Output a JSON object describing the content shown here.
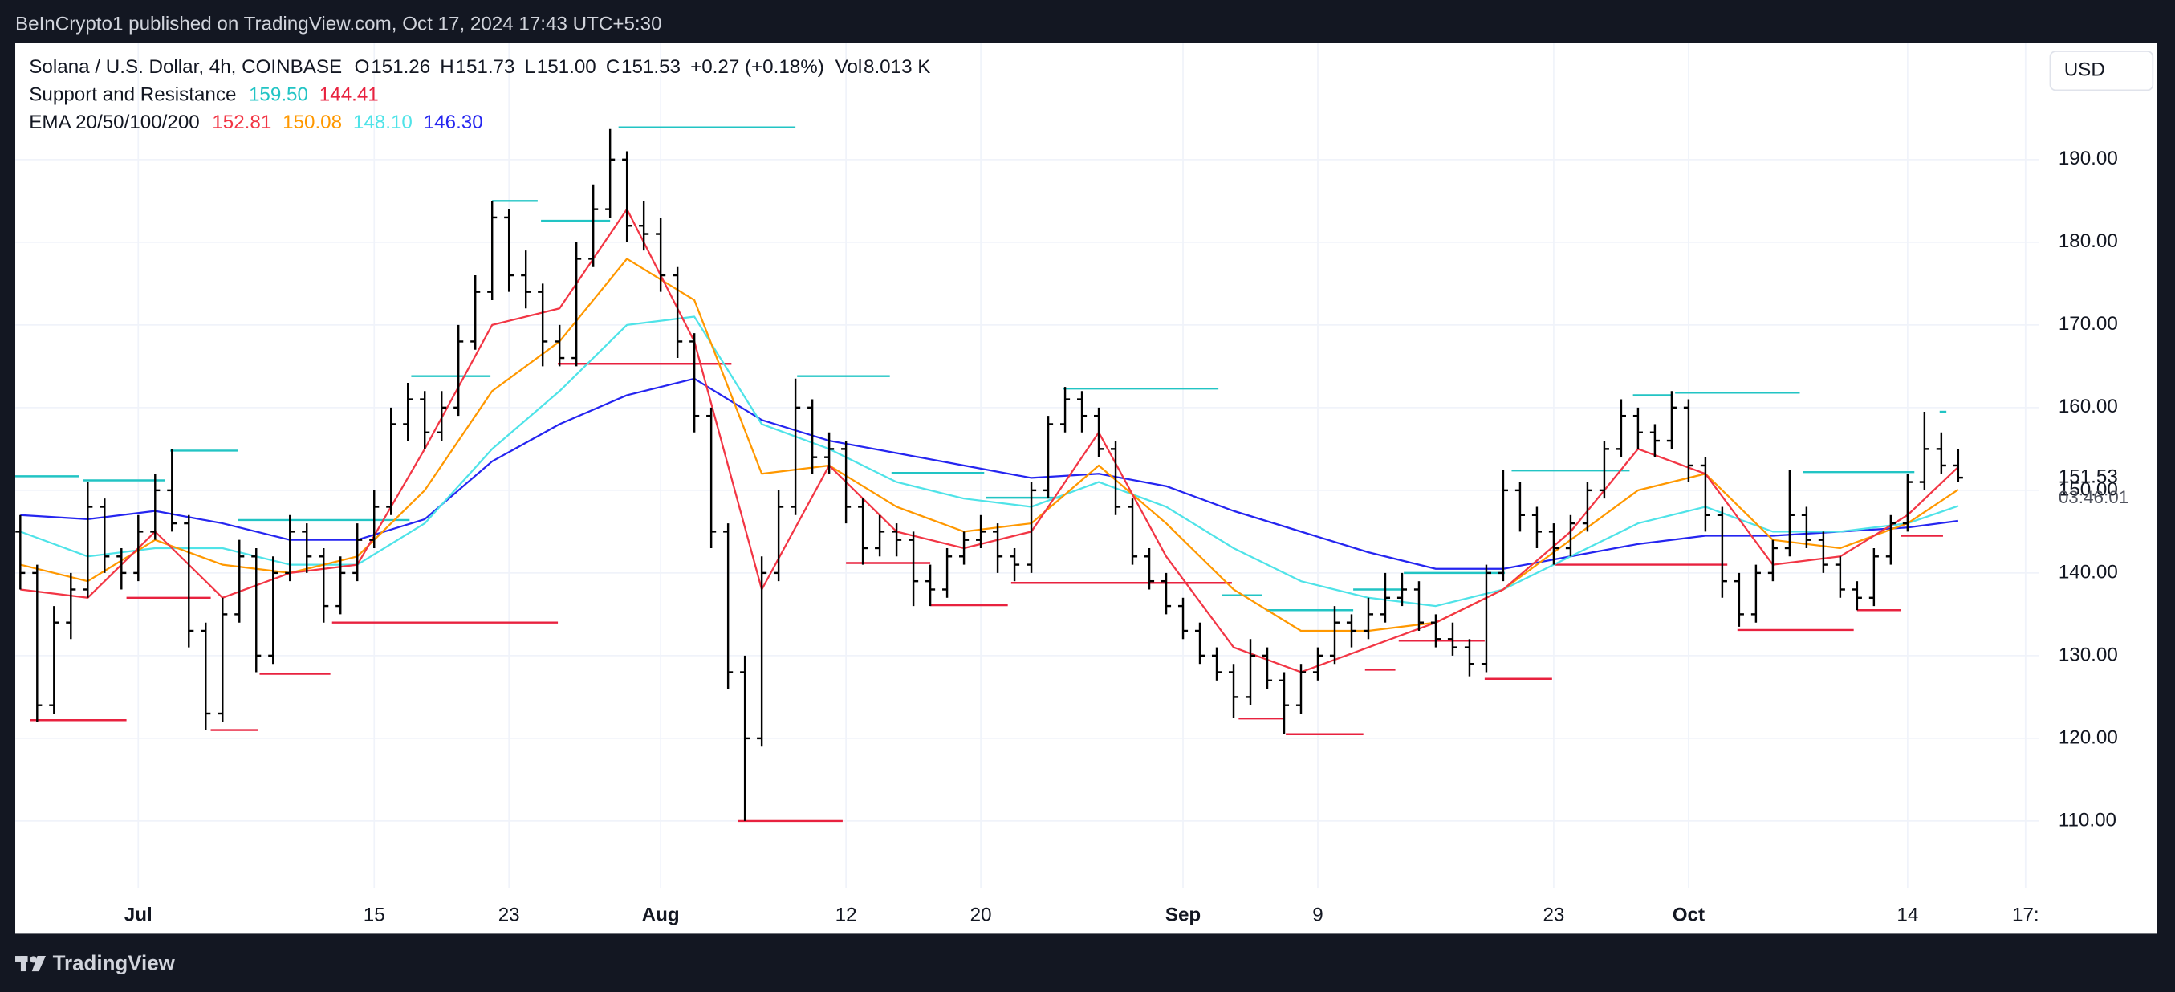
{
  "header": {
    "text": "BeInCrypto1 published on TradingView.com, Oct 17, 2024 17:43 UTC+5:30"
  },
  "legend": {
    "symbol": "Solana / U.S. Dollar, 4h, COINBASE",
    "ohlc": [
      {
        "label": "O",
        "value": "151.26"
      },
      {
        "label": "H",
        "value": "151.73"
      },
      {
        "label": "L",
        "value": "151.00"
      },
      {
        "label": "C",
        "value": "151.53"
      }
    ],
    "change": "+0.27 (+0.18%)",
    "volume": {
      "label": "Vol",
      "value": "8.013 K"
    },
    "indicators": [
      {
        "name": "Support and Resistance",
        "values": [
          "159.50",
          "144.41"
        ],
        "colors": [
          "#22c4c4",
          "#e8223f"
        ]
      },
      {
        "name": "EMA 20/50/100/200",
        "values": [
          "152.81",
          "150.08",
          "148.10",
          "146.30"
        ],
        "colors": [
          "#f23645",
          "#ff9800",
          "#4fe3e8",
          "#2525f0"
        ]
      }
    ]
  },
  "currency": "USD",
  "countdown": "03:46:01",
  "footer": {
    "brand": "TradingView"
  },
  "chart_data": {
    "type": "candlestick",
    "color": "#000000",
    "grid": true,
    "xlim": [
      -7.3,
      112.8
    ],
    "ylim": [
      101.9,
      204.1
    ],
    "xticks": [
      {
        "value": 0,
        "label": "Jul"
      },
      {
        "value": 14,
        "label": "15"
      },
      {
        "value": 22,
        "label": "23"
      },
      {
        "value": 31,
        "label": "Aug"
      },
      {
        "value": 42,
        "label": "12"
      },
      {
        "value": 50,
        "label": "20"
      },
      {
        "value": 62,
        "label": "Sep"
      },
      {
        "value": 70,
        "label": "9"
      },
      {
        "value": 84,
        "label": "23"
      },
      {
        "value": 92,
        "label": "Oct"
      },
      {
        "value": 105,
        "label": "14"
      },
      {
        "value": 112,
        "label": "17:"
      }
    ],
    "yticks": [
      {
        "value": 110,
        "label": "110.00"
      },
      {
        "value": 120,
        "label": "120.00"
      },
      {
        "value": 130,
        "label": "130.00"
      },
      {
        "value": 140,
        "label": "140.00"
      },
      {
        "value": 150,
        "label": "150.00"
      },
      {
        "value": 160,
        "label": "160.00"
      },
      {
        "value": 170,
        "label": "170.00"
      },
      {
        "value": 180,
        "label": "180.00"
      },
      {
        "value": 190,
        "label": "190.00"
      }
    ],
    "x": [
      -7,
      -6,
      -5,
      -4,
      -3,
      -2,
      -1,
      0,
      1,
      2,
      3,
      4,
      5,
      6,
      7,
      8,
      9,
      10,
      11,
      12,
      13,
      14,
      15,
      16,
      17,
      18,
      19,
      20,
      21,
      22,
      23,
      24,
      25,
      26,
      27,
      28,
      29,
      30,
      31,
      32,
      33,
      34,
      35,
      36,
      37,
      38,
      39,
      40,
      41,
      42,
      43,
      44,
      45,
      46,
      47,
      48,
      49,
      50,
      51,
      52,
      53,
      54,
      55,
      56,
      57,
      58,
      59,
      60,
      61,
      62,
      63,
      64,
      65,
      66,
      67,
      68,
      69,
      70,
      71,
      72,
      73,
      74,
      75,
      76,
      77,
      78,
      79,
      80,
      81,
      82,
      83,
      84,
      85,
      86,
      87,
      88,
      89,
      90,
      91,
      92,
      93,
      94,
      95,
      96,
      97,
      98,
      99,
      100,
      101,
      102,
      103,
      104,
      105,
      106,
      107,
      108
    ],
    "open": [
      145,
      140,
      124,
      134,
      138,
      148,
      142,
      140,
      145,
      150,
      146,
      133,
      123,
      135,
      142,
      130,
      140,
      145,
      142,
      136,
      140,
      144,
      148,
      158,
      161,
      157,
      160,
      168,
      174,
      183,
      176,
      174,
      168,
      166,
      178,
      184,
      190,
      182,
      181,
      176,
      168,
      159,
      145,
      128,
      120,
      140,
      148,
      160,
      154,
      155,
      148,
      143,
      145,
      144,
      139,
      138,
      142,
      144,
      145,
      142,
      141,
      150,
      158,
      161,
      159,
      155,
      148,
      142,
      139,
      136,
      133,
      130,
      128,
      125,
      130,
      127,
      124,
      128,
      130,
      134,
      133,
      135,
      137,
      138,
      134,
      132,
      131,
      129,
      140,
      150,
      147,
      145,
      143,
      146,
      150,
      155,
      159,
      157,
      156,
      160,
      153,
      147,
      139,
      135,
      140,
      143,
      147,
      144,
      141,
      138,
      137,
      142,
      146,
      151,
      155,
      153
    ],
    "high": [
      147,
      141,
      136,
      140,
      151,
      149,
      143,
      147,
      152,
      155,
      147,
      134,
      137,
      144,
      143,
      142,
      147,
      146,
      143,
      142,
      146,
      150,
      160,
      163,
      162,
      162,
      170,
      176,
      185,
      184,
      179,
      175,
      170,
      180,
      187,
      193.7,
      191,
      185,
      183,
      177,
      169,
      160,
      146,
      130,
      142,
      150,
      163.5,
      161,
      157,
      156,
      149,
      147,
      146,
      145,
      141,
      143,
      145,
      147,
      146,
      143,
      151,
      159,
      162.5,
      162,
      160,
      156,
      149,
      143,
      140,
      137,
      134,
      131,
      129,
      132,
      131,
      128,
      129,
      131,
      136,
      135,
      137,
      140,
      140,
      139,
      135,
      134,
      132,
      141,
      152.5,
      151,
      148,
      146,
      147,
      151,
      156,
      161,
      160,
      158,
      162,
      161,
      154,
      148,
      140,
      141,
      144,
      152.5,
      148,
      145,
      142,
      139,
      143,
      147,
      152,
      159.5,
      157,
      155
    ],
    "low": [
      138,
      122,
      123,
      132,
      137,
      140,
      138,
      139,
      144,
      145,
      131,
      121,
      122,
      134,
      128,
      129,
      139,
      140,
      134,
      135,
      139,
      143,
      147,
      156,
      155,
      156,
      159,
      167,
      173,
      174,
      172,
      165,
      165,
      165,
      177,
      183,
      180,
      179,
      174,
      166,
      157,
      143,
      126,
      110,
      119,
      139,
      147,
      152,
      152,
      146,
      141,
      142,
      142,
      136,
      136,
      137,
      141,
      143,
      140,
      139,
      140,
      149,
      157,
      157,
      154,
      147,
      141,
      138,
      135,
      132,
      129,
      127,
      122.5,
      124,
      126,
      120.5,
      123,
      127,
      129,
      131,
      132,
      134,
      136,
      133,
      131,
      130,
      127.5,
      128,
      139,
      145,
      143,
      141,
      142,
      145,
      149,
      154,
      155,
      154,
      155,
      151,
      145,
      137,
      133.5,
      134,
      139,
      142,
      143,
      140,
      137,
      135.5,
      136,
      141,
      145,
      150,
      152,
      151
    ],
    "close": [
      140,
      124,
      134,
      138,
      148,
      142,
      140,
      145,
      150,
      146,
      133,
      123,
      135,
      142,
      130,
      140,
      145,
      142,
      136,
      140,
      144,
      148,
      158,
      161,
      157,
      160,
      168,
      174,
      183,
      176,
      174,
      168,
      166,
      178,
      184,
      190,
      182,
      181,
      176,
      168,
      159,
      145,
      128,
      120,
      140,
      148,
      160,
      154,
      155,
      148,
      143,
      145,
      144,
      139,
      138,
      142,
      144,
      145,
      142,
      141,
      150,
      158,
      161,
      159,
      155,
      148,
      142,
      139,
      136,
      133,
      130,
      128,
      125,
      130,
      127,
      124,
      128,
      130,
      134,
      133,
      135,
      137,
      138,
      134,
      132,
      131,
      129,
      140,
      150,
      147,
      145,
      143,
      146,
      150,
      155,
      159,
      157,
      156,
      160,
      153,
      147,
      139,
      135,
      140,
      143,
      147,
      144,
      141,
      138,
      137,
      142,
      146,
      151,
      155,
      153,
      151.53
    ],
    "series": [
      {
        "color": "#2525f0",
        "x": [
          -7,
          -3,
          1,
          5,
          9,
          13,
          17,
          21,
          25,
          29,
          33,
          37,
          41,
          45,
          49,
          53,
          57,
          61,
          65,
          69,
          73,
          77,
          81,
          85,
          89,
          93,
          97,
          101,
          105,
          108
        ],
        "values": [
          147,
          146.5,
          147.5,
          146,
          144,
          144,
          146.5,
          153.5,
          158,
          161.5,
          163.5,
          158.5,
          156,
          154.5,
          153,
          151.5,
          152,
          150.5,
          147.5,
          145,
          142.5,
          140.5,
          140.5,
          142,
          143.5,
          144.5,
          144.5,
          145,
          145.5,
          146.3
        ]
      },
      {
        "color": "#4fe3e8",
        "x": [
          -7,
          -3,
          1,
          5,
          9,
          13,
          17,
          21,
          25,
          29,
          33,
          37,
          41,
          45,
          49,
          53,
          57,
          61,
          65,
          69,
          73,
          77,
          81,
          85,
          89,
          93,
          97,
          101,
          105,
          108
        ],
        "values": [
          145,
          142,
          143,
          143,
          141,
          141,
          146,
          155,
          162,
          170,
          171,
          158,
          155,
          151,
          149,
          148,
          151,
          148,
          143,
          139,
          137,
          136,
          138,
          142,
          146,
          148,
          145,
          145,
          146,
          148.1
        ]
      },
      {
        "color": "#ff9800",
        "x": [
          -7,
          -3,
          1,
          5,
          9,
          13,
          17,
          21,
          25,
          29,
          33,
          37,
          41,
          45,
          49,
          53,
          57,
          61,
          65,
          69,
          73,
          77,
          81,
          85,
          89,
          93,
          97,
          101,
          105,
          108
        ],
        "values": [
          141,
          139,
          144,
          141,
          140,
          142,
          150,
          162,
          168,
          178,
          173,
          152,
          153,
          148,
          145,
          146,
          153,
          146,
          138,
          133,
          133,
          134,
          138,
          144,
          150,
          152,
          144,
          143,
          146,
          150.08
        ]
      },
      {
        "color": "#f23645",
        "x": [
          -7,
          -3,
          1,
          5,
          9,
          13,
          17,
          21,
          25,
          29,
          33,
          37,
          41,
          45,
          49,
          53,
          57,
          61,
          65,
          69,
          73,
          77,
          81,
          85,
          89,
          93,
          97,
          101,
          105,
          108
        ],
        "values": [
          138,
          137,
          145,
          137,
          140,
          141,
          155,
          170,
          172,
          184,
          168,
          138,
          153,
          145,
          143,
          145,
          157,
          142,
          131,
          128,
          131,
          134,
          138,
          145,
          155,
          152,
          141,
          142,
          147,
          152.81
        ]
      }
    ],
    "resistance": {
      "color": "#22c4c4",
      "levels": [
        {
          "x": [
            -7.3,
            -3.5
          ],
          "value": 151.7
        },
        {
          "x": [
            -3.3,
            1.6
          ],
          "value": 151.2
        },
        {
          "x": [
            1.9,
            5.9
          ],
          "value": 154.8
        },
        {
          "x": [
            5.9,
            16.1
          ],
          "value": 146.4
        },
        {
          "x": [
            16.2,
            20.9
          ],
          "value": 163.8
        },
        {
          "x": [
            21,
            23.7
          ],
          "value": 185
        },
        {
          "x": [
            23.9,
            28
          ],
          "value": 182.6
        },
        {
          "x": [
            28.5,
            39
          ],
          "value": 193.9
        },
        {
          "x": [
            39.1,
            44.6
          ],
          "value": 163.8
        },
        {
          "x": [
            44.7,
            50.2
          ],
          "value": 152.1
        },
        {
          "x": [
            50.3,
            54.8
          ],
          "value": 149.1
        },
        {
          "x": [
            54.9,
            64.1
          ],
          "value": 162.3
        },
        {
          "x": [
            64.3,
            66.7
          ],
          "value": 137.3
        },
        {
          "x": [
            66.9,
            72.1
          ],
          "value": 135.5
        },
        {
          "x": [
            72.1,
            75.1
          ],
          "value": 138
        },
        {
          "x": [
            75.1,
            81.1
          ],
          "value": 140
        },
        {
          "x": [
            81.5,
            88.5
          ],
          "value": 152.4
        },
        {
          "x": [
            88.7,
            91
          ],
          "value": 161.5
        },
        {
          "x": [
            91.2,
            98.6
          ],
          "value": 161.8
        },
        {
          "x": [
            98.8,
            105.4
          ],
          "value": 152.2
        },
        {
          "x": [
            106.9,
            107.3
          ],
          "value": 159.5
        }
      ]
    },
    "support": {
      "color": "#e8223f",
      "levels": [
        {
          "x": [
            -6.4,
            -0.7
          ],
          "value": 122.2
        },
        {
          "x": [
            -0.7,
            4.3
          ],
          "value": 137
        },
        {
          "x": [
            4.3,
            7.1
          ],
          "value": 121
        },
        {
          "x": [
            7.2,
            11.4
          ],
          "value": 127.8
        },
        {
          "x": [
            11.5,
            24.9
          ],
          "value": 134
        },
        {
          "x": [
            24.9,
            35.2
          ],
          "value": 165.3
        },
        {
          "x": [
            35.6,
            41.8
          ],
          "value": 110
        },
        {
          "x": [
            42,
            47
          ],
          "value": 141.2
        },
        {
          "x": [
            47,
            51.6
          ],
          "value": 136.1
        },
        {
          "x": [
            51.8,
            64.9
          ],
          "value": 138.8
        },
        {
          "x": [
            65.3,
            68
          ],
          "value": 122.4
        },
        {
          "x": [
            68.1,
            72.7
          ],
          "value": 120.5
        },
        {
          "x": [
            72.8,
            74.6
          ],
          "value": 128.3
        },
        {
          "x": [
            74.8,
            79.9
          ],
          "value": 131.8
        },
        {
          "x": [
            79.9,
            83.9
          ],
          "value": 127.2
        },
        {
          "x": [
            84.1,
            94.3
          ],
          "value": 141
        },
        {
          "x": [
            94.9,
            101.8
          ],
          "value": 133.1
        },
        {
          "x": [
            102,
            104.6
          ],
          "value": 135.5
        },
        {
          "x": [
            104.6,
            107.1
          ],
          "value": 144.5
        }
      ]
    }
  }
}
